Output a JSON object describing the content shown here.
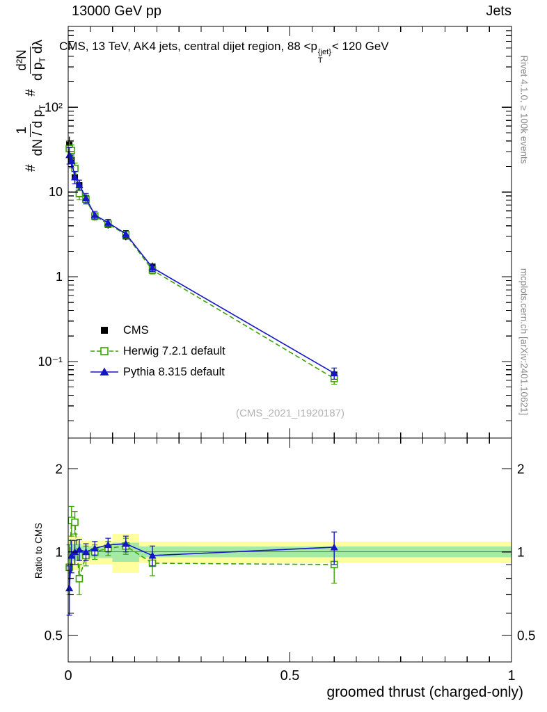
{
  "header": {
    "left": "13000 GeV pp",
    "right": "Jets"
  },
  "title": {
    "text": "CMS, 13 TeV, AK4 jets, central dijet region, 88 <p",
    "sup": "{jet}",
    "sub": "T",
    "suffix": "< 120 GeV"
  },
  "ylabel": {
    "hash1": "#",
    "frac1_num": "1",
    "frac1_den_pre": "dN / d p",
    "frac1_den_sub": "T",
    "hash2": "#",
    "frac2_num": "d²N",
    "frac2_den_pre": "d p",
    "frac2_den_sub": "T",
    "frac2_den_post": " dλ"
  },
  "side_notes": {
    "top": "Rivet 4.1.0, ≥ 100k events",
    "bottom": "mcplots.cern.ch [arXiv:2401.10621]"
  },
  "watermark": "(CMS_2021_I1920187)",
  "ratio_label": "Ratio to CMS",
  "xlabel": "groomed thrust (charged-only)",
  "legend": {
    "items": [
      {
        "label": "CMS"
      },
      {
        "label": "Herwig 7.2.1 default"
      },
      {
        "label": "Pythia 8.315 default"
      }
    ]
  },
  "colors": {
    "cms": "#000000",
    "herwig": "#3aa200",
    "pythia": "#1515c8",
    "band_yellow": "#ffff9e",
    "band_green": "#a6e8a6",
    "band_center": "#2fa12f",
    "frame": "#000000",
    "note_gray": "#8a8a8a",
    "watermark_gray": "#b4b4b4"
  },
  "chart_data": {
    "type": "line",
    "title": "CMS, 13 TeV, AK4 jets, central dijet region, 88 <p{jet}T< 120 GeV",
    "xlabel": "groomed thrust (charged-only)",
    "ylabel": "# 1/(dN/dpT) # d²N/(dpT dλ)",
    "ratio_ylabel": "Ratio to CMS",
    "xlim": [
      0,
      1
    ],
    "x": [
      0.0025,
      0.0075,
      0.015,
      0.025,
      0.04,
      0.06,
      0.09,
      0.13,
      0.19,
      0.6
    ],
    "series": [
      {
        "name": "CMS",
        "marker": "square-filled",
        "line": false,
        "y": [
          37,
          24,
          15,
          12,
          8.5,
          5.2,
          4.1,
          3.0,
          1.32,
          0.07
        ],
        "yerr": [
          8,
          4,
          2.5,
          1.8,
          1.2,
          0.6,
          0.4,
          0.3,
          0.15,
          0.012
        ]
      },
      {
        "name": "Herwig 7.2.1 default",
        "marker": "square-open",
        "line": "dashed",
        "y": [
          32.5,
          31,
          19,
          9.6,
          8.2,
          5.2,
          4.2,
          3.15,
          1.2,
          0.063
        ],
        "yerr": [
          7,
          5,
          3,
          1.5,
          1.0,
          0.5,
          0.35,
          0.3,
          0.12,
          0.009
        ],
        "ratio": [
          0.88,
          1.3,
          1.28,
          0.8,
          0.97,
          1.0,
          1.03,
          1.05,
          0.91,
          0.9
        ],
        "ratio_err": [
          0.18,
          0.16,
          0.12,
          0.1,
          0.08,
          0.06,
          0.06,
          0.07,
          0.09,
          0.13
        ]
      },
      {
        "name": "Pythia 8.315 default",
        "marker": "triangle-filled",
        "line": "solid",
        "y": [
          27.4,
          23.3,
          15.0,
          12.2,
          8.5,
          5.36,
          4.35,
          3.21,
          1.28,
          0.0728
        ],
        "yerr": [
          6,
          4,
          2.5,
          1.6,
          1.1,
          0.55,
          0.4,
          0.3,
          0.13,
          0.011
        ],
        "ratio": [
          0.74,
          0.97,
          1.0,
          1.02,
          1.0,
          1.03,
          1.06,
          1.07,
          0.97,
          1.04
        ],
        "ratio_err": [
          0.15,
          0.13,
          0.1,
          0.09,
          0.07,
          0.06,
          0.06,
          0.07,
          0.08,
          0.14
        ]
      }
    ],
    "main_axis": {
      "scale": "log",
      "ymin": 0.0125,
      "ymax": 900,
      "ticks": [
        {
          "v": 100,
          "label": "10²"
        },
        {
          "v": 10,
          "label": "10"
        },
        {
          "v": 1,
          "label": "1"
        },
        {
          "v": 0.1,
          "label": "10⁻¹"
        }
      ]
    },
    "ratio_axis": {
      "scale": "log",
      "ymin": 0.4,
      "ymax": 2.58,
      "ticks": [
        {
          "v": 2,
          "label": "2"
        },
        {
          "v": 1,
          "label": "1"
        },
        {
          "v": 0.5,
          "label": "0.5"
        }
      ]
    },
    "x_axis": {
      "ticks": [
        {
          "v": 0,
          "label": "0"
        },
        {
          "v": 0.5,
          "label": "0.5"
        },
        {
          "v": 1,
          "label": "1"
        }
      ],
      "minor_step": 0.05
    },
    "bands": {
      "yellow": [
        [
          0,
          0.03,
          0.86,
          1.14
        ],
        [
          0.03,
          0.1,
          0.9,
          1.1
        ],
        [
          0.1,
          0.16,
          0.84,
          1.16
        ],
        [
          0.16,
          1.0,
          0.91,
          1.09
        ]
      ],
      "green": [
        [
          0,
          0.03,
          0.93,
          1.07
        ],
        [
          0.03,
          0.1,
          0.95,
          1.05
        ],
        [
          0.1,
          0.16,
          0.92,
          1.08
        ],
        [
          0.16,
          1.0,
          0.955,
          1.045
        ]
      ]
    }
  }
}
